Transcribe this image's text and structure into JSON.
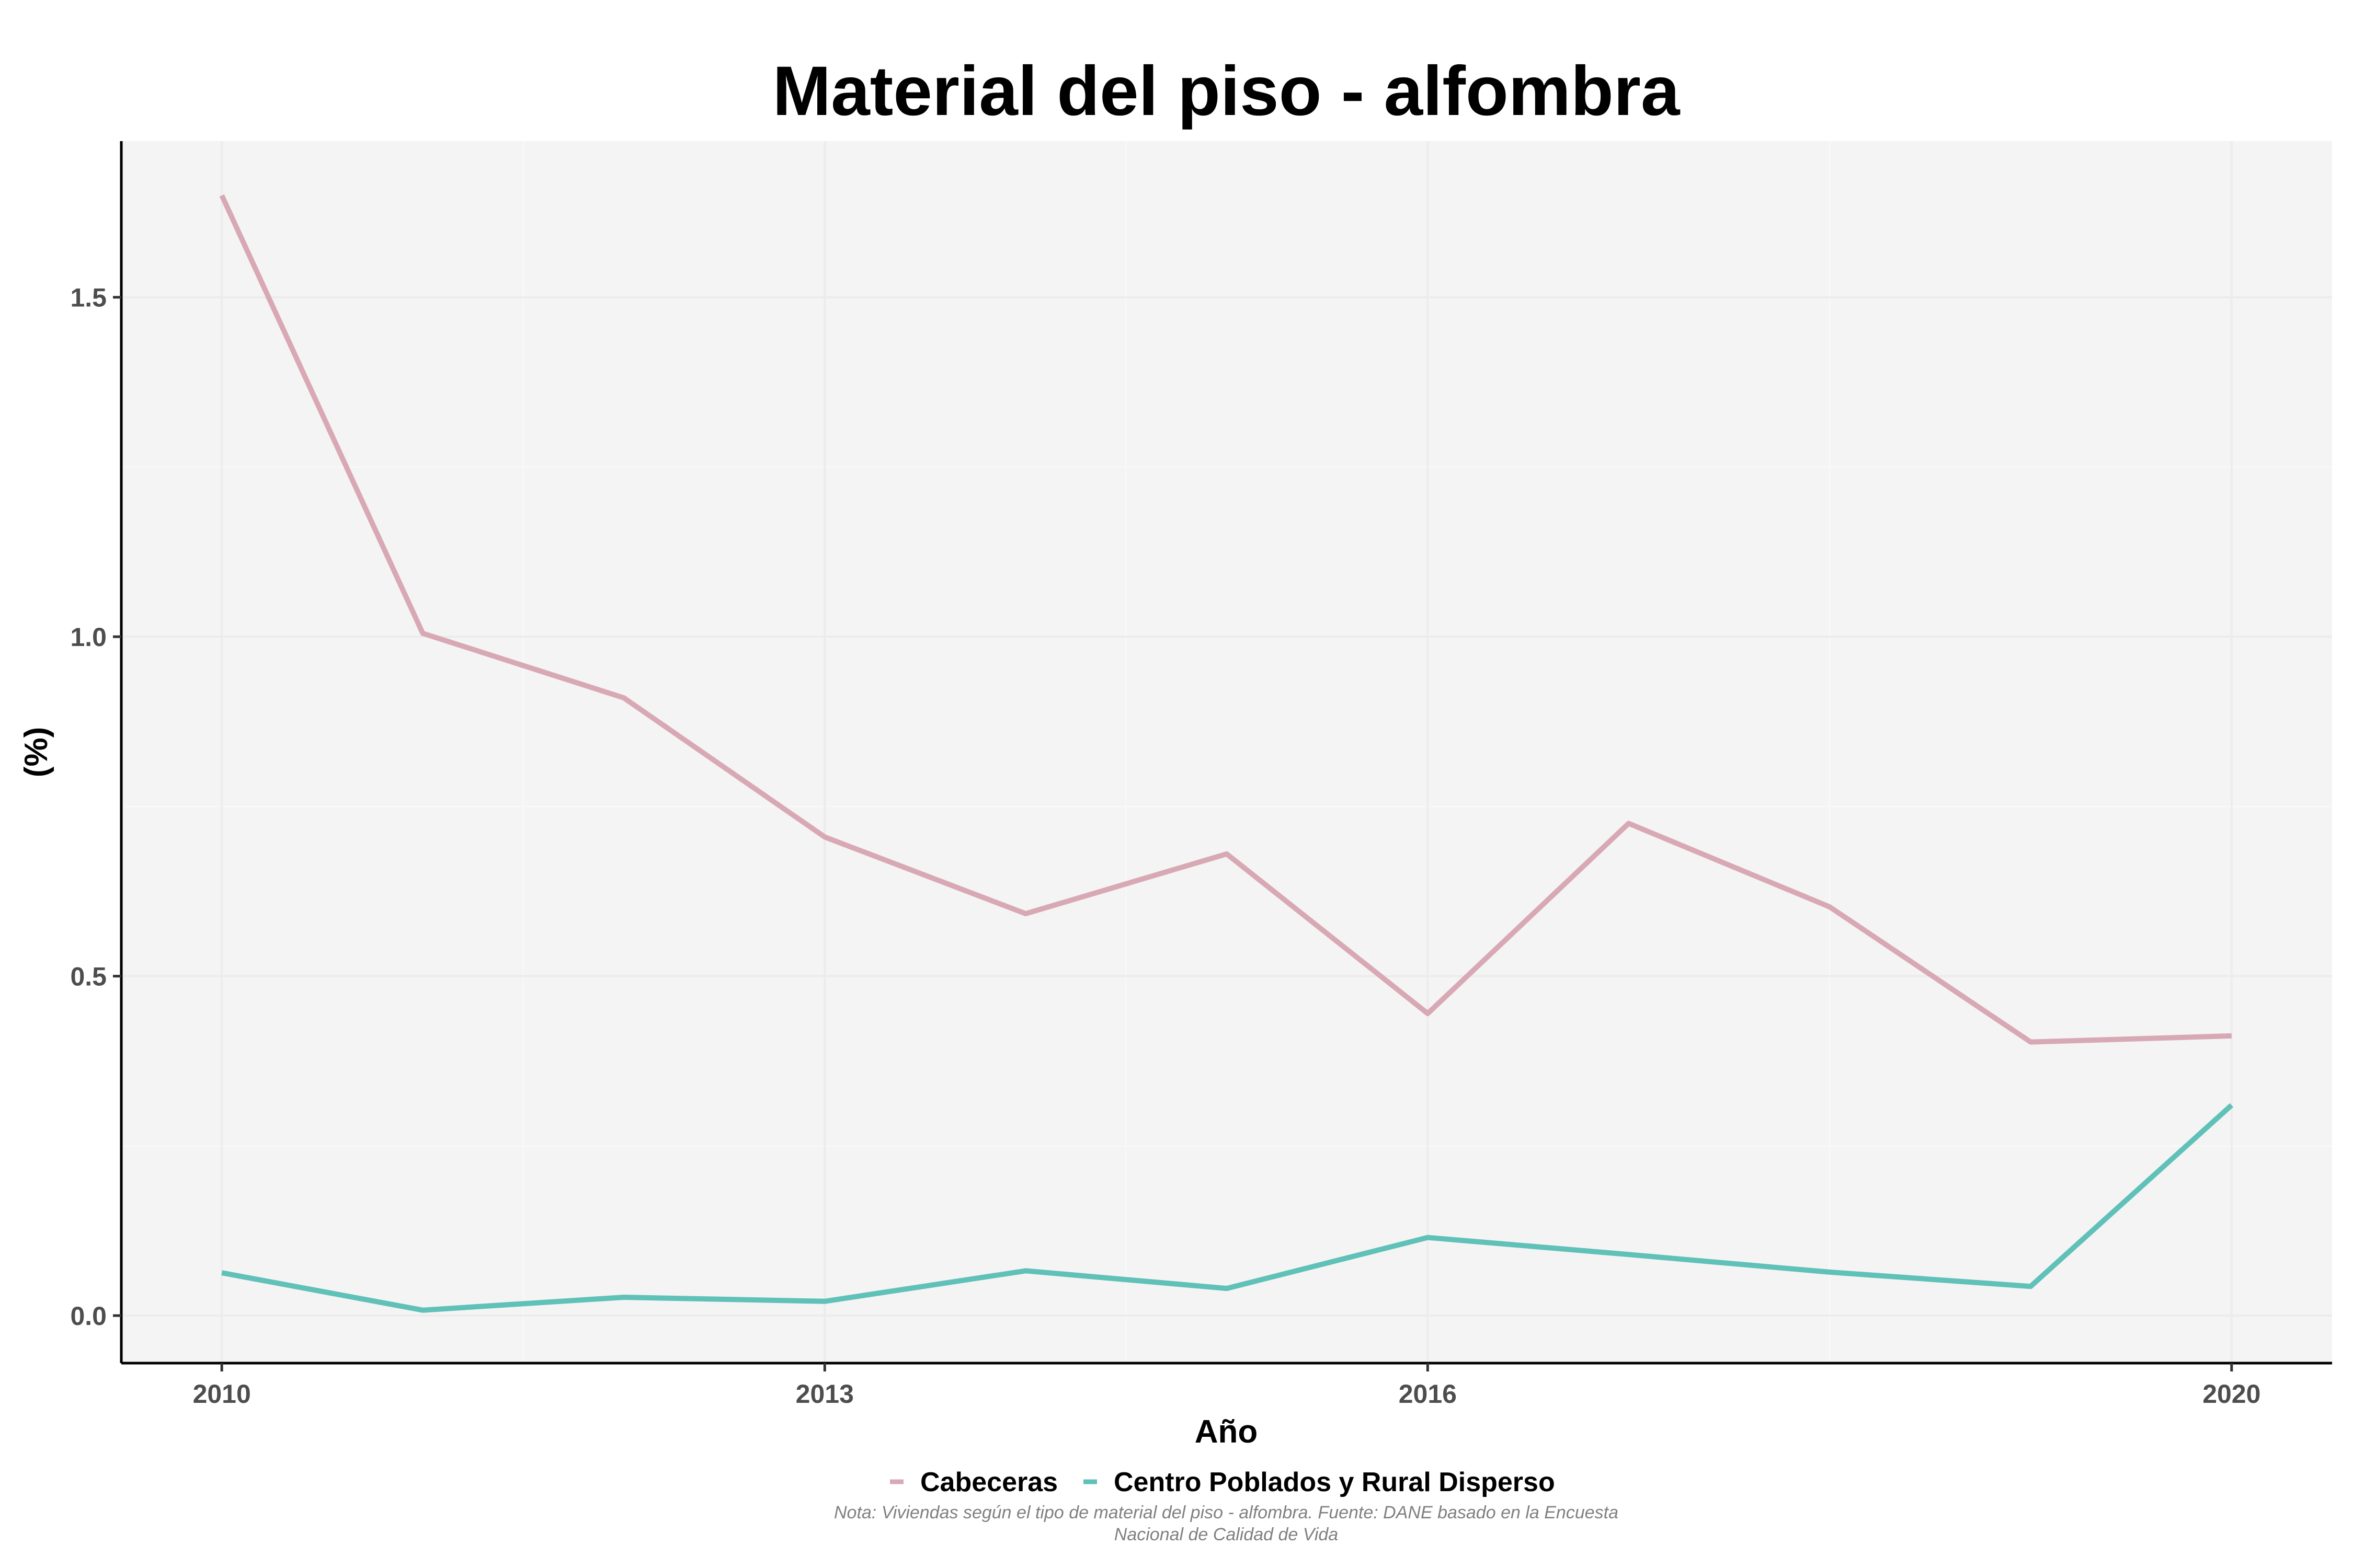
{
  "chart_data": {
    "type": "line",
    "title": "Material del piso - alfombra",
    "xlabel": "Año",
    "ylabel": "(%)",
    "x": [
      2010,
      2011,
      2012,
      2013,
      2014,
      2015,
      2016,
      2017,
      2018,
      2019,
      2020
    ],
    "xlim": [
      2009.5,
      2020.5
    ],
    "ylim": [
      -0.07,
      1.73
    ],
    "xticks": [
      2010,
      2013,
      2016,
      2020
    ],
    "xtick_labels": [
      "2010",
      "2013",
      "2016",
      "2020"
    ],
    "yticks": [
      0.0,
      0.5,
      1.0,
      1.5
    ],
    "ytick_labels": [
      "0.0",
      "0.5",
      "1.0",
      "1.5"
    ],
    "grid": true,
    "legend_position": "bottom",
    "series": [
      {
        "name": "Cabeceras",
        "color": "#d8a9b5",
        "values": [
          1.65,
          1.005,
          0.91,
          0.705,
          0.592,
          0.68,
          0.445,
          0.725,
          0.602,
          0.403,
          0.412
        ]
      },
      {
        "name": "Centro Poblados y Rural Disperso",
        "color": "#5fc1b8",
        "values": [
          0.063,
          0.008,
          0.027,
          0.021,
          0.066,
          0.04,
          0.115,
          0.09,
          0.064,
          0.043,
          0.31
        ]
      }
    ],
    "note": [
      "Nota: Viviendas según el tipo de material del piso - alfombra. Fuente: DANE basado en la Encuesta",
      "Nacional de Calidad de Vida"
    ]
  }
}
